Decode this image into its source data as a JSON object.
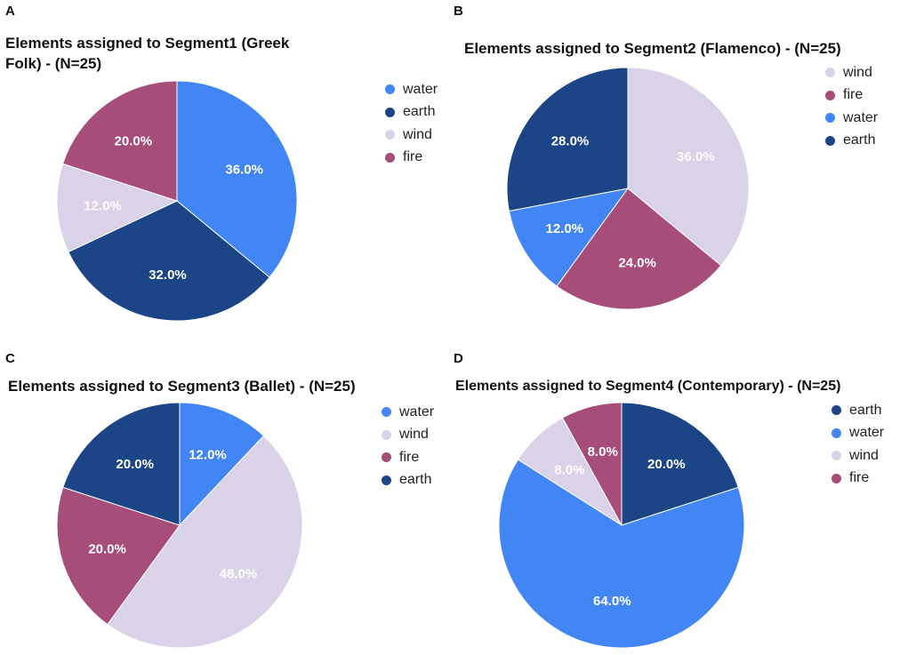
{
  "colors": {
    "water": "#4285f4",
    "earth": "#1c4587",
    "wind": "#d9d2e9",
    "fire": "#a64d79",
    "label_light": "#ffffff",
    "label_dark": "#ffffff"
  },
  "chart_data": [
    {
      "letter": "A",
      "type": "pie",
      "title": "Elements assigned to Segment1 (Greek Folk) - (N=25)",
      "categories": [
        "water",
        "earth",
        "wind",
        "fire"
      ],
      "values": [
        36.0,
        32.0,
        12.0,
        20.0
      ],
      "labels": [
        "36.0%",
        "32.0%",
        "12.0%",
        "20.0%"
      ],
      "legend": [
        "water",
        "earth",
        "wind",
        "fire"
      ],
      "legend_position": "right"
    },
    {
      "letter": "B",
      "type": "pie",
      "title": "Elements assigned to Segment2 (Flamenco) - (N=25)",
      "categories": [
        "wind",
        "fire",
        "water",
        "earth"
      ],
      "values": [
        36.0,
        24.0,
        12.0,
        28.0
      ],
      "labels": [
        "36.0%",
        "24.0%",
        "12.0%",
        "28.0%"
      ],
      "legend": [
        "wind",
        "fire",
        "water",
        "earth"
      ],
      "legend_position": "right"
    },
    {
      "letter": "C",
      "type": "pie",
      "title": "Elements assigned to Segment3 (Ballet) - (N=25)",
      "categories": [
        "water",
        "wind",
        "fire",
        "earth"
      ],
      "values": [
        12.0,
        48.0,
        20.0,
        20.0
      ],
      "labels": [
        "12.0%",
        "48.0%",
        "20.0%",
        "20.0%"
      ],
      "legend": [
        "water",
        "wind",
        "fire",
        "earth"
      ],
      "legend_position": "right"
    },
    {
      "letter": "D",
      "type": "pie",
      "title": "Elements assigned to Segment4 (Contemporary) - (N=25)",
      "categories": [
        "earth",
        "water",
        "wind",
        "fire"
      ],
      "values": [
        20.0,
        64.0,
        8.0,
        8.0
      ],
      "labels": [
        "20.0%",
        "64.0%",
        "8.0%",
        "8.0%"
      ],
      "legend": [
        "earth",
        "water",
        "wind",
        "fire"
      ],
      "legend_position": "right"
    }
  ]
}
